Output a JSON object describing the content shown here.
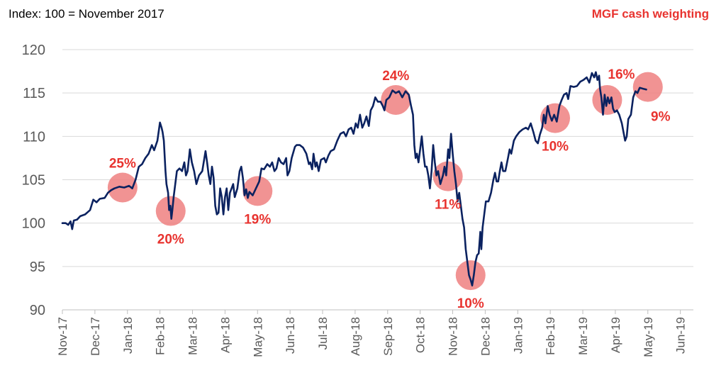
{
  "chart_data": {
    "type": "line",
    "subtitle": "Index: 100 = November 2017",
    "annotation_title": "MGF cash weighting",
    "ylim": [
      90,
      120
    ],
    "y_ticks": [
      90,
      95,
      100,
      105,
      110,
      115,
      120
    ],
    "x_range": [
      0,
      19.4
    ],
    "x_tick_labels": [
      "Nov-17",
      "Dec-17",
      "Jan-18",
      "Feb-18",
      "Mar-18",
      "Apr-18",
      "May-18",
      "Jun-18",
      "Jul-18",
      "Aug-18",
      "Sep-18",
      "Oct-18",
      "Nov-18",
      "Dec-18",
      "Jan-19",
      "Feb-19",
      "Mar-19",
      "Apr-19",
      "May-19",
      "Jun-19"
    ],
    "grid": "horizontal",
    "colors": {
      "line": "#0b2260",
      "marker": "#ee8080",
      "label": "#e8332f",
      "grid": "#d9d9d9"
    },
    "series": [
      {
        "points": [
          [
            0.0,
            100.0
          ],
          [
            0.1,
            100.0
          ],
          [
            0.18,
            99.8
          ],
          [
            0.25,
            100.2
          ],
          [
            0.3,
            99.3
          ],
          [
            0.35,
            100.3
          ],
          [
            0.45,
            100.4
          ],
          [
            0.55,
            100.8
          ],
          [
            0.7,
            101.0
          ],
          [
            0.85,
            101.5
          ],
          [
            0.95,
            102.7
          ],
          [
            1.05,
            102.4
          ],
          [
            1.15,
            102.8
          ],
          [
            1.3,
            102.9
          ],
          [
            1.4,
            103.5
          ],
          [
            1.5,
            103.8
          ],
          [
            1.6,
            104.0
          ],
          [
            1.75,
            104.2
          ],
          [
            1.9,
            104.1
          ],
          [
            2.05,
            104.3
          ],
          [
            2.15,
            104.0
          ],
          [
            2.25,
            105.0
          ],
          [
            2.35,
            106.5
          ],
          [
            2.45,
            106.8
          ],
          [
            2.55,
            107.5
          ],
          [
            2.65,
            108.0
          ],
          [
            2.75,
            109.0
          ],
          [
            2.82,
            108.4
          ],
          [
            2.92,
            109.5
          ],
          [
            3.0,
            111.6
          ],
          [
            3.05,
            111.0
          ],
          [
            3.08,
            110.5
          ],
          [
            3.12,
            109.5
          ],
          [
            3.17,
            106.0
          ],
          [
            3.2,
            104.5
          ],
          [
            3.25,
            103.5
          ],
          [
            3.28,
            101.5
          ],
          [
            3.32,
            102.0
          ],
          [
            3.35,
            100.5
          ],
          [
            3.38,
            101.5
          ],
          [
            3.42,
            103.0
          ],
          [
            3.47,
            104.5
          ],
          [
            3.52,
            106.0
          ],
          [
            3.6,
            106.3
          ],
          [
            3.68,
            106.0
          ],
          [
            3.75,
            107.0
          ],
          [
            3.8,
            105.5
          ],
          [
            3.85,
            106.0
          ],
          [
            3.92,
            108.5
          ],
          [
            3.98,
            107.0
          ],
          [
            4.05,
            106.0
          ],
          [
            4.12,
            104.5
          ],
          [
            4.2,
            105.5
          ],
          [
            4.3,
            106.0
          ],
          [
            4.4,
            108.3
          ],
          [
            4.45,
            107.0
          ],
          [
            4.5,
            105.5
          ],
          [
            4.55,
            104.5
          ],
          [
            4.6,
            106.5
          ],
          [
            4.65,
            105.2
          ],
          [
            4.7,
            102.0
          ],
          [
            4.75,
            101.0
          ],
          [
            4.8,
            101.2
          ],
          [
            4.85,
            104.0
          ],
          [
            4.9,
            103.0
          ],
          [
            4.95,
            101.0
          ],
          [
            5.0,
            103.0
          ],
          [
            5.05,
            104.0
          ],
          [
            5.1,
            101.5
          ],
          [
            5.15,
            103.5
          ],
          [
            5.25,
            104.5
          ],
          [
            5.3,
            103.0
          ],
          [
            5.38,
            104.0
          ],
          [
            5.45,
            106.0
          ],
          [
            5.5,
            106.5
          ],
          [
            5.55,
            105.2
          ],
          [
            5.6,
            103.2
          ],
          [
            5.65,
            103.9
          ],
          [
            5.7,
            102.9
          ],
          [
            5.75,
            103.6
          ],
          [
            5.85,
            103.2
          ],
          [
            5.95,
            104.0
          ],
          [
            6.05,
            104.8
          ],
          [
            6.12,
            106.3
          ],
          [
            6.2,
            106.2
          ],
          [
            6.3,
            106.8
          ],
          [
            6.38,
            106.5
          ],
          [
            6.45,
            107.0
          ],
          [
            6.52,
            106.0
          ],
          [
            6.58,
            106.3
          ],
          [
            6.65,
            107.5
          ],
          [
            6.72,
            107.0
          ],
          [
            6.8,
            106.8
          ],
          [
            6.88,
            107.5
          ],
          [
            6.92,
            105.5
          ],
          [
            6.98,
            106.0
          ],
          [
            7.05,
            107.5
          ],
          [
            7.15,
            108.8
          ],
          [
            7.2,
            109.0
          ],
          [
            7.3,
            109.0
          ],
          [
            7.4,
            108.7
          ],
          [
            7.5,
            108.0
          ],
          [
            7.58,
            106.8
          ],
          [
            7.62,
            107.0
          ],
          [
            7.68,
            106.2
          ],
          [
            7.72,
            108.0
          ],
          [
            7.78,
            106.5
          ],
          [
            7.82,
            107.0
          ],
          [
            7.88,
            106.0
          ],
          [
            7.95,
            107.3
          ],
          [
            8.05,
            107.5
          ],
          [
            8.1,
            107.0
          ],
          [
            8.18,
            107.8
          ],
          [
            8.25,
            108.3
          ],
          [
            8.35,
            108.5
          ],
          [
            8.45,
            109.5
          ],
          [
            8.55,
            110.3
          ],
          [
            8.65,
            110.5
          ],
          [
            8.72,
            110.0
          ],
          [
            8.8,
            110.8
          ],
          [
            8.88,
            111.0
          ],
          [
            8.95,
            110.3
          ],
          [
            9.02,
            111.5
          ],
          [
            9.08,
            111.0
          ],
          [
            9.15,
            112.5
          ],
          [
            9.22,
            111.0
          ],
          [
            9.28,
            111.5
          ],
          [
            9.35,
            112.3
          ],
          [
            9.42,
            111.2
          ],
          [
            9.48,
            113.0
          ],
          [
            9.55,
            113.5
          ],
          [
            9.62,
            114.5
          ],
          [
            9.7,
            114.0
          ],
          [
            9.78,
            114.0
          ],
          [
            9.85,
            113.5
          ],
          [
            9.9,
            113.0
          ],
          [
            9.96,
            114.2
          ],
          [
            10.05,
            114.5
          ],
          [
            10.15,
            115.3
          ],
          [
            10.25,
            115.0
          ],
          [
            10.35,
            115.2
          ],
          [
            10.45,
            114.5
          ],
          [
            10.55,
            115.2
          ],
          [
            10.65,
            114.8
          ],
          [
            10.72,
            113.5
          ],
          [
            10.78,
            112.5
          ],
          [
            10.82,
            109.0
          ],
          [
            10.86,
            107.5
          ],
          [
            10.9,
            108.0
          ],
          [
            10.95,
            107.0
          ],
          [
            11.0,
            108.5
          ],
          [
            11.05,
            110.0
          ],
          [
            11.1,
            108.0
          ],
          [
            11.15,
            106.5
          ],
          [
            11.2,
            106.5
          ],
          [
            11.25,
            105.5
          ],
          [
            11.3,
            104.0
          ],
          [
            11.35,
            106.0
          ],
          [
            11.4,
            109.0
          ],
          [
            11.45,
            107.0
          ],
          [
            11.5,
            105.5
          ],
          [
            11.55,
            106.0
          ],
          [
            11.62,
            104.5
          ],
          [
            11.7,
            105.5
          ],
          [
            11.75,
            106.5
          ],
          [
            11.8,
            105.5
          ],
          [
            11.86,
            108.5
          ],
          [
            11.9,
            107.5
          ],
          [
            11.95,
            110.3
          ],
          [
            12.0,
            108.0
          ],
          [
            12.05,
            106.0
          ],
          [
            12.1,
            104.5
          ],
          [
            12.15,
            102.5
          ],
          [
            12.2,
            103.5
          ],
          [
            12.25,
            102.0
          ],
          [
            12.3,
            100.5
          ],
          [
            12.35,
            99.5
          ],
          [
            12.4,
            97.0
          ],
          [
            12.45,
            95.5
          ],
          [
            12.5,
            94.0
          ],
          [
            12.55,
            93.5
          ],
          [
            12.6,
            92.8
          ],
          [
            12.65,
            94.0
          ],
          [
            12.7,
            95.5
          ],
          [
            12.75,
            96.3
          ],
          [
            12.8,
            96.5
          ],
          [
            12.85,
            99.0
          ],
          [
            12.88,
            97.0
          ],
          [
            12.92,
            99.5
          ],
          [
            12.97,
            101.0
          ],
          [
            13.02,
            102.5
          ],
          [
            13.1,
            102.5
          ],
          [
            13.18,
            103.5
          ],
          [
            13.25,
            105.0
          ],
          [
            13.3,
            105.8
          ],
          [
            13.35,
            104.8
          ],
          [
            13.4,
            104.8
          ],
          [
            13.45,
            106.0
          ],
          [
            13.5,
            107.0
          ],
          [
            13.55,
            106.0
          ],
          [
            13.62,
            106.0
          ],
          [
            13.7,
            107.5
          ],
          [
            13.75,
            108.5
          ],
          [
            13.8,
            108.0
          ],
          [
            13.88,
            109.5
          ],
          [
            13.95,
            110.0
          ],
          [
            14.05,
            110.5
          ],
          [
            14.15,
            110.8
          ],
          [
            14.25,
            111.0
          ],
          [
            14.32,
            110.8
          ],
          [
            14.4,
            111.5
          ],
          [
            14.48,
            110.5
          ],
          [
            14.55,
            109.5
          ],
          [
            14.62,
            109.2
          ],
          [
            14.68,
            110.2
          ],
          [
            14.75,
            111.0
          ],
          [
            14.8,
            112.5
          ],
          [
            14.85,
            111.5
          ],
          [
            14.92,
            113.5
          ],
          [
            14.98,
            112.5
          ],
          [
            15.05,
            111.8
          ],
          [
            15.12,
            112.5
          ],
          [
            15.2,
            111.7
          ],
          [
            15.28,
            113.5
          ],
          [
            15.35,
            114.2
          ],
          [
            15.42,
            114.8
          ],
          [
            15.5,
            115.0
          ],
          [
            15.55,
            114.3
          ],
          [
            15.62,
            115.8
          ],
          [
            15.72,
            115.7
          ],
          [
            15.82,
            115.8
          ],
          [
            15.92,
            116.3
          ],
          [
            16.02,
            116.5
          ],
          [
            16.12,
            116.8
          ],
          [
            16.2,
            116.2
          ],
          [
            16.28,
            117.3
          ],
          [
            16.35,
            116.8
          ],
          [
            16.4,
            117.4
          ],
          [
            16.45,
            116.5
          ],
          [
            16.5,
            117.0
          ],
          [
            16.53,
            115.5
          ],
          [
            16.57,
            114.5
          ],
          [
            16.62,
            112.5
          ],
          [
            16.67,
            114.8
          ],
          [
            16.72,
            113.5
          ],
          [
            16.77,
            114.5
          ],
          [
            16.82,
            113.8
          ],
          [
            16.88,
            114.5
          ],
          [
            16.93,
            113.2
          ],
          [
            16.98,
            112.8
          ],
          [
            17.05,
            113.0
          ],
          [
            17.12,
            112.5
          ],
          [
            17.2,
            111.5
          ],
          [
            17.25,
            110.5
          ],
          [
            17.3,
            109.5
          ],
          [
            17.35,
            110.0
          ],
          [
            17.4,
            112.0
          ],
          [
            17.48,
            112.5
          ],
          [
            17.55,
            114.5
          ],
          [
            17.62,
            115.2
          ],
          [
            17.68,
            115.0
          ],
          [
            17.75,
            115.6
          ],
          [
            17.85,
            115.5
          ],
          [
            17.95,
            115.4
          ]
        ]
      }
    ],
    "annotations": [
      {
        "x": 1.85,
        "y": 104.1,
        "label": "25%",
        "label_pos": "above"
      },
      {
        "x": 3.33,
        "y": 101.4,
        "label": "20%",
        "label_pos": "below"
      },
      {
        "x": 6.0,
        "y": 103.7,
        "label": "19%",
        "label_pos": "below"
      },
      {
        "x": 10.25,
        "y": 114.2,
        "label": "24%",
        "label_pos": "above"
      },
      {
        "x": 11.85,
        "y": 105.4,
        "label": "11%",
        "label_pos": "below"
      },
      {
        "x": 12.55,
        "y": 94.0,
        "label": "10%",
        "label_pos": "below"
      },
      {
        "x": 15.15,
        "y": 112.1,
        "label": "10%",
        "label_pos": "below"
      },
      {
        "x": 16.75,
        "y": 114.2,
        "label": "16%",
        "label_pos": "above-right"
      },
      {
        "x": 18.0,
        "y": 115.7,
        "label": "9%",
        "label_pos": "below-right"
      }
    ]
  }
}
